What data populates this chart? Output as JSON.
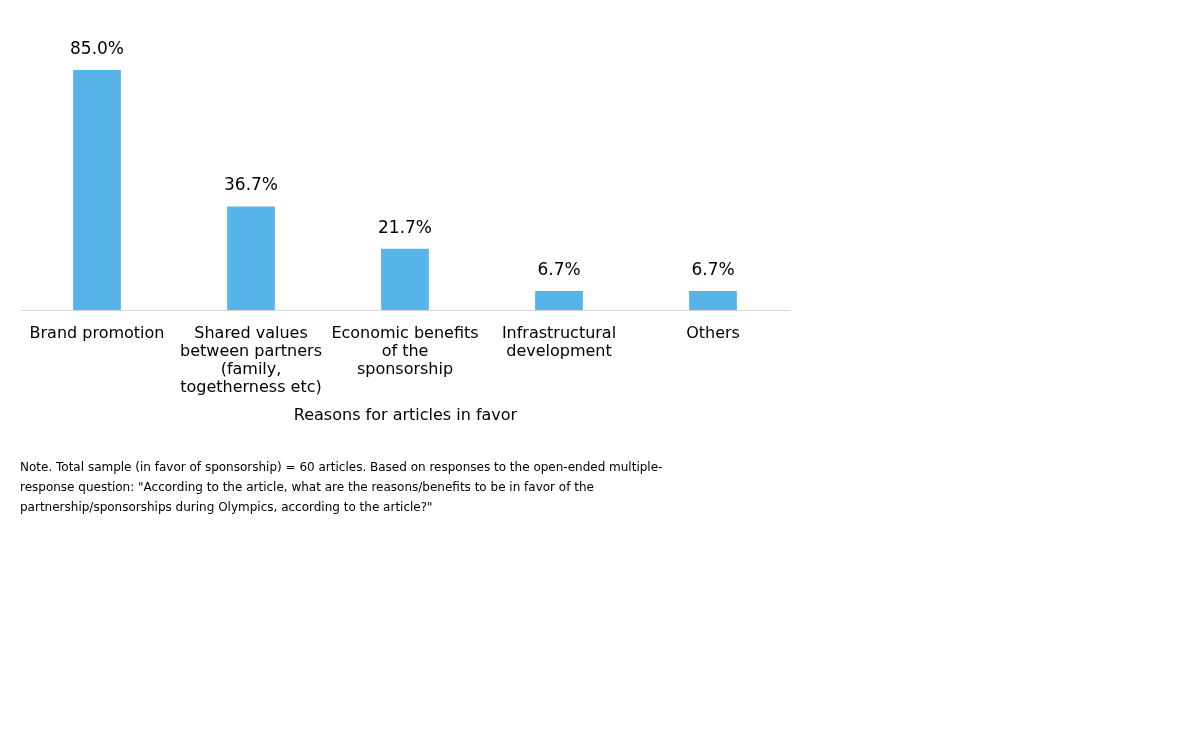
{
  "chart_data": {
    "type": "bar",
    "categories": [
      "Brand promotion",
      "Shared values between partners (family, togetherness etc)",
      "Economic benefits of the sponsorship",
      "Infrastructural development",
      "Others"
    ],
    "values": [
      85.0,
      36.7,
      21.7,
      6.7,
      6.7
    ],
    "value_labels": [
      "85.0%",
      "36.7%",
      "21.7%",
      "6.7%",
      "6.7%"
    ],
    "color": "#56b4e9",
    "xlabel": "Reasons for articles in favor",
    "grid": false,
    "annotations": [
      "Note. Total sample (in favor of sponsorship) = 60 articles. Based on responses to the open-ended multiple-response question: \"According to the article, what are the reasons/benefits to be in favor of the partnership/sponsorships during Olympics, according to the article?\""
    ]
  }
}
